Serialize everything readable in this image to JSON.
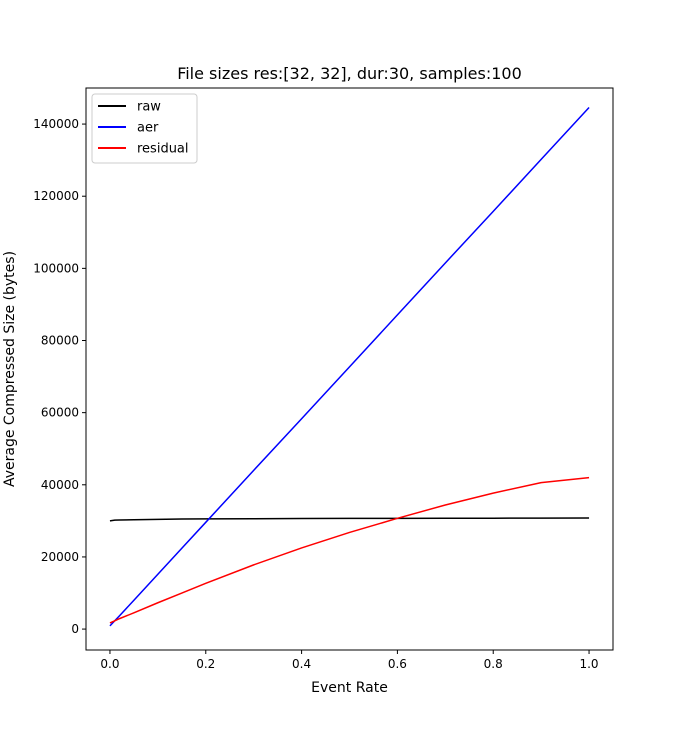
{
  "chart_data": {
    "type": "line",
    "title": "File sizes res:[32, 32], dur:30, samples:100",
    "xlabel": "Event Rate",
    "ylabel": "Average Compressed Size (bytes)",
    "xlim": [
      -0.05,
      1.05
    ],
    "ylim": [
      -5800,
      150000
    ],
    "grid": false,
    "legend_position": "upper left",
    "x_ticks": [
      0.0,
      0.2,
      0.4,
      0.6,
      0.8,
      1.0
    ],
    "x_tick_labels": [
      "0.0",
      "0.2",
      "0.4",
      "0.6",
      "0.8",
      "1.0"
    ],
    "y_ticks": [
      0,
      20000,
      40000,
      60000,
      80000,
      100000,
      120000,
      140000
    ],
    "y_tick_labels": [
      "0",
      "20000",
      "40000",
      "60000",
      "80000",
      "100000",
      "120000",
      "140000"
    ],
    "x": [
      0.0,
      0.01,
      0.02,
      0.05,
      0.1,
      0.15,
      0.2,
      0.3,
      0.4,
      0.5,
      0.6,
      0.7,
      0.8,
      0.9,
      1.0
    ],
    "series": [
      {
        "name": "raw",
        "color": "#000000",
        "values": [
          30000,
          30200,
          30250,
          30300,
          30400,
          30500,
          30550,
          30600,
          30650,
          30680,
          30700,
          30720,
          30740,
          30760,
          30780
        ]
      },
      {
        "name": "aer",
        "color": "#0000ff",
        "values": [
          900,
          2300,
          3700,
          8000,
          15200,
          22400,
          29600,
          44000,
          58300,
          72700,
          87100,
          101500,
          115800,
          130200,
          144600
        ]
      },
      {
        "name": "residual",
        "color": "#ff0000",
        "values": [
          1700,
          2300,
          2900,
          4500,
          7300,
          10000,
          12700,
          17800,
          22500,
          26800,
          30700,
          34400,
          37700,
          40600,
          42000
        ]
      }
    ]
  }
}
